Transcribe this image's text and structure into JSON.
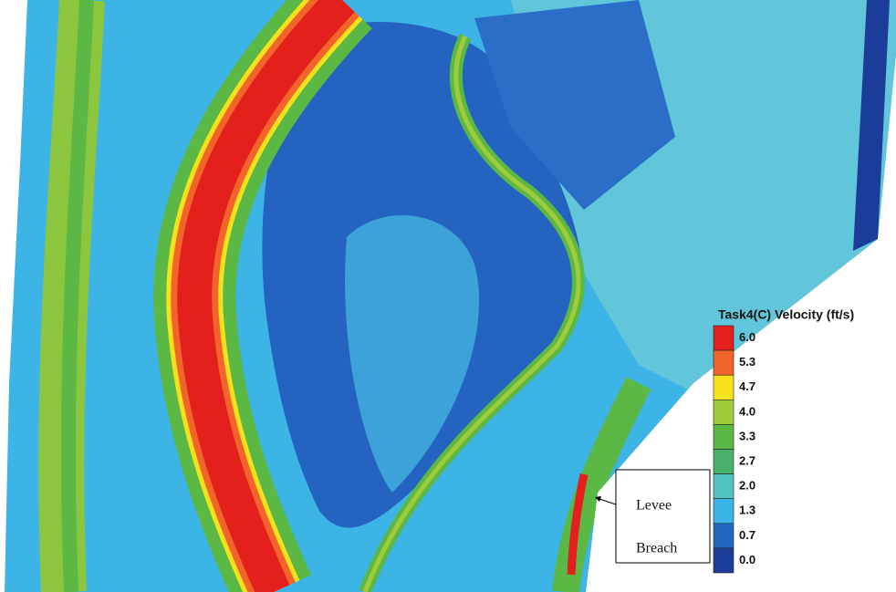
{
  "legend": {
    "title": "Task4(C) Velocity (ft/s)",
    "entries": [
      {
        "label": "6.0",
        "color": "#e3201c"
      },
      {
        "label": "5.3",
        "color": "#f2652a"
      },
      {
        "label": "4.7",
        "color": "#f6e11c"
      },
      {
        "label": "4.0",
        "color": "#9fcb3b"
      },
      {
        "label": "3.3",
        "color": "#5bb845"
      },
      {
        "label": "2.7",
        "color": "#49b06a"
      },
      {
        "label": "2.0",
        "color": "#52c4c0"
      },
      {
        "label": "1.3",
        "color": "#39b5e8"
      },
      {
        "label": "0.7",
        "color": "#2068c0"
      },
      {
        "label": "0.0",
        "color": "#1b3c98"
      }
    ]
  },
  "annotation": {
    "lines": [
      "Levee",
      "Breach"
    ]
  }
}
